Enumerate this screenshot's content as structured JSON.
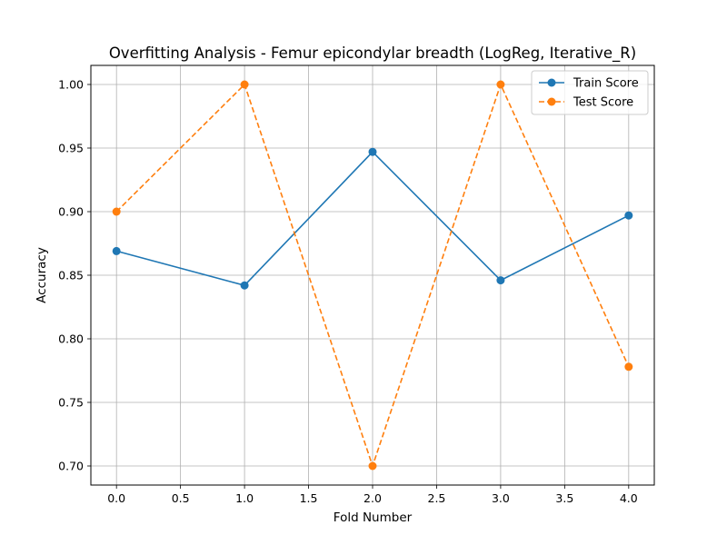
{
  "chart_data": {
    "type": "line",
    "title": "Overfitting Analysis - Femur epicondylar breadth (LogReg, Iterative_R)",
    "xlabel": "Fold Number",
    "ylabel": "Accuracy",
    "x": [
      0,
      1,
      2,
      3,
      4
    ],
    "xlim": [
      -0.2,
      4.2
    ],
    "ylim": [
      0.685,
      1.015
    ],
    "xticks": [
      "0.0",
      "0.5",
      "1.0",
      "1.5",
      "2.0",
      "2.5",
      "3.0",
      "3.5",
      "4.0"
    ],
    "yticks": [
      "0.70",
      "0.75",
      "0.80",
      "0.85",
      "0.90",
      "0.95",
      "1.00"
    ],
    "grid": true,
    "legend_position": "top-right",
    "series": [
      {
        "name": "Train Score",
        "values": [
          0.869,
          0.842,
          0.947,
          0.846,
          0.897
        ],
        "color": "#1f77b4",
        "line_style": "solid",
        "marker": "circle"
      },
      {
        "name": "Test Score",
        "values": [
          0.9,
          1.0,
          0.7,
          1.0,
          0.778
        ],
        "color": "#ff7f0e",
        "line_style": "dashed",
        "marker": "circle"
      }
    ]
  }
}
